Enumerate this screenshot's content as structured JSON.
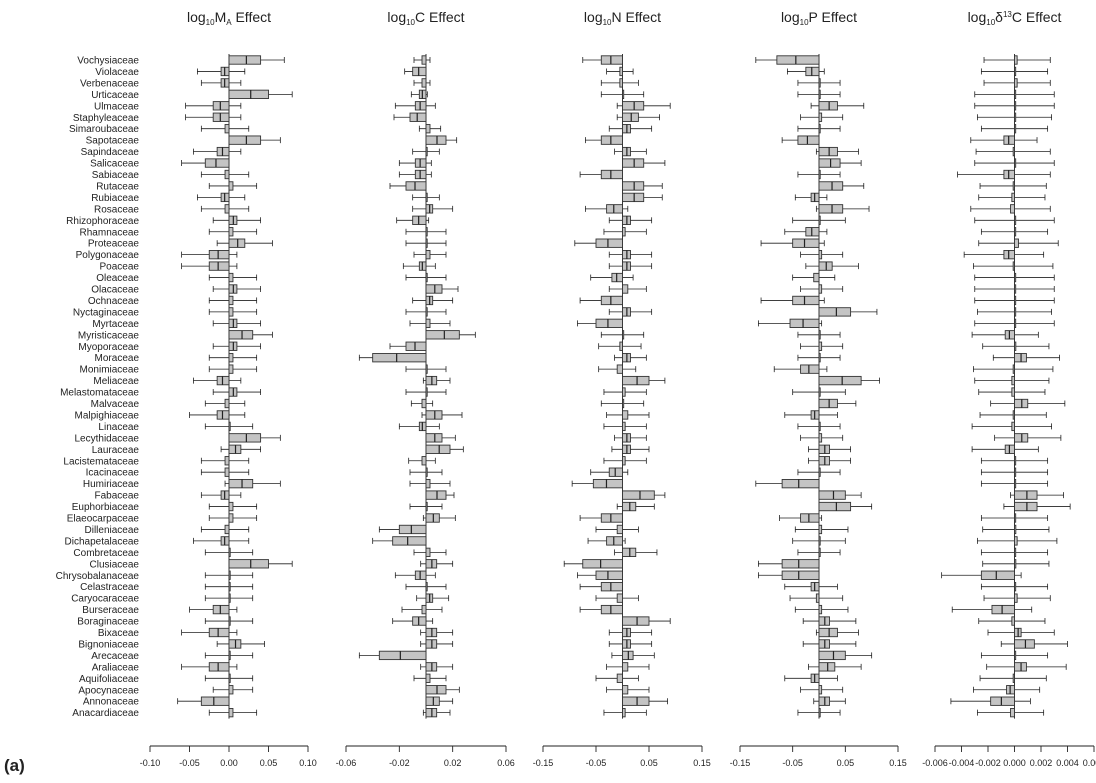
{
  "panel_label": "(a)",
  "chart_data": {
    "type": "bar",
    "orientation": "horizontal",
    "families": [
      "Vochysiaceae",
      "Violaceae",
      "Verbenaceae",
      "Urticaceae",
      "Ulmaceae",
      "Staphyleaceae",
      "Simaroubaceae",
      "Sapotaceae",
      "Sapindaceae",
      "Salicaceae",
      "Sabiaceae",
      "Rutaceae",
      "Rubiaceae",
      "Rosaceae",
      "Rhizophoraceae",
      "Rhamnaceae",
      "Proteaceae",
      "Polygonaceae",
      "Poaceae",
      "Oleaceae",
      "Olacaceae",
      "Ochnaceae",
      "Nyctaginaceae",
      "Myrtaceae",
      "Myristicaceae",
      "Myoporaceae",
      "Moraceae",
      "Monimiaceae",
      "Meliaceae",
      "Melastomataceae",
      "Malvaceae",
      "Malpighiaceae",
      "Linaceae",
      "Lecythidaceae",
      "Lauraceae",
      "Lacistemataceae",
      "Icacinaceae",
      "Humiriaceae",
      "Fabaceae",
      "Euphorbiaceae",
      "Elaeocarpaceae",
      "Dilleniaceae",
      "Dichapetalaceae",
      "Combretaceae",
      "Clusiaceae",
      "Chrysobalanaceae",
      "Celastraceae",
      "Caryocaraceae",
      "Burseraceae",
      "Boraginaceae",
      "Bixaceae",
      "Bignoniaceae",
      "Arecaceae",
      "Araliaceae",
      "Aquifoliaceae",
      "Apocynaceae",
      "Annonaceae",
      "Anacardiaceae"
    ],
    "panels": [
      {
        "title_main": "log",
        "title_sub": "10",
        "title_var": "M",
        "title_varsub": "A",
        "title_rest": " Effect",
        "xlim": [
          -0.1,
          0.1
        ],
        "ticks": [
          -0.1,
          -0.05,
          0.0,
          0.05,
          0.1
        ],
        "tick_labels": [
          "-0.10",
          "-0.05",
          "0.00",
          "0.05",
          "0.10"
        ],
        "values": [
          0.04,
          -0.01,
          -0.01,
          0.05,
          -0.02,
          -0.02,
          -0.005,
          0.04,
          -0.015,
          -0.03,
          -0.005,
          0.005,
          -0.01,
          -0.005,
          0.01,
          0.005,
          0.02,
          -0.025,
          -0.025,
          0.005,
          0.01,
          0.005,
          0.005,
          0.01,
          0.03,
          0.01,
          0.005,
          0.005,
          -0.015,
          0.01,
          -0.005,
          -0.015,
          0.0,
          0.04,
          0.015,
          -0.005,
          -0.005,
          0.03,
          -0.01,
          0.005,
          0.005,
          -0.005,
          -0.01,
          0.0,
          0.05,
          0.0,
          0.0,
          0.0,
          -0.02,
          0.0,
          -0.025,
          0.015,
          0.0,
          -0.025,
          0.0,
          0.005,
          -0.035,
          0.005
        ],
        "errors": [
          0.03,
          0.03,
          0.025,
          0.03,
          0.035,
          0.035,
          0.03,
          0.025,
          0.03,
          0.03,
          0.03,
          0.03,
          0.03,
          0.03,
          0.03,
          0.03,
          0.035,
          0.035,
          0.035,
          0.03,
          0.03,
          0.03,
          0.03,
          0.03,
          0.025,
          0.03,
          0.03,
          0.03,
          0.03,
          0.03,
          0.025,
          0.035,
          0.03,
          0.025,
          0.025,
          0.03,
          0.03,
          0.035,
          0.025,
          0.03,
          0.03,
          0.03,
          0.035,
          0.03,
          0.03,
          0.03,
          0.03,
          0.03,
          0.03,
          0.03,
          0.035,
          0.03,
          0.03,
          0.035,
          0.03,
          0.025,
          0.03,
          0.03
        ]
      },
      {
        "title_main": "log",
        "title_sub": "10",
        "title_var": "C",
        "title_varsub": "",
        "title_rest": " Effect",
        "xlim": [
          -0.06,
          0.06
        ],
        "ticks": [
          -0.06,
          -0.02,
          0.02,
          0.06
        ],
        "tick_labels": [
          "-0.06",
          "-0.02",
          "0.02",
          "0.06"
        ],
        "values": [
          -0.003,
          -0.01,
          -0.003,
          -0.005,
          -0.008,
          -0.012,
          0.003,
          0.015,
          0.0,
          -0.008,
          -0.008,
          -0.015,
          0.0,
          0.005,
          -0.01,
          0.0,
          0.0,
          0.003,
          -0.005,
          0.0,
          0.012,
          0.005,
          0.0,
          0.003,
          0.025,
          -0.015,
          -0.04,
          0.0,
          0.008,
          0.0,
          -0.003,
          0.012,
          -0.005,
          0.012,
          0.018,
          -0.003,
          0.0,
          0.003,
          0.015,
          0.0,
          0.01,
          -0.02,
          -0.025,
          0.003,
          0.008,
          -0.008,
          0.0,
          0.005,
          -0.003,
          -0.01,
          0.008,
          0.008,
          -0.035,
          0.008,
          0.003,
          0.015,
          0.01,
          0.008
        ],
        "errors": [
          0.006,
          0.006,
          0.006,
          0.006,
          0.015,
          0.012,
          0.008,
          0.008,
          0.01,
          0.012,
          0.012,
          0.012,
          0.01,
          0.015,
          0.012,
          0.015,
          0.015,
          0.012,
          0.012,
          0.015,
          0.012,
          0.015,
          0.015,
          0.015,
          0.012,
          0.012,
          0.01,
          0.015,
          0.01,
          0.015,
          0.008,
          0.015,
          0.015,
          0.01,
          0.01,
          0.01,
          0.012,
          0.015,
          0.006,
          0.012,
          0.012,
          0.015,
          0.015,
          0.012,
          0.012,
          0.015,
          0.015,
          0.012,
          0.015,
          0.015,
          0.012,
          0.012,
          0.015,
          0.012,
          0.012,
          0.01,
          0.01,
          0.01
        ]
      },
      {
        "title_main": "log",
        "title_sub": "10",
        "title_var": "N",
        "title_varsub": "",
        "title_rest": " Effect",
        "xlim": [
          -0.15,
          0.15
        ],
        "ticks": [
          -0.15,
          -0.05,
          0.05,
          0.15
        ],
        "tick_labels": [
          "-0.15",
          "-0.05",
          "0.05",
          "0.15"
        ],
        "values": [
          -0.04,
          -0.005,
          -0.005,
          0.0,
          0.04,
          0.03,
          0.015,
          -0.04,
          0.015,
          0.04,
          -0.04,
          0.04,
          0.04,
          -0.03,
          0.015,
          0.005,
          -0.05,
          0.015,
          0.015,
          -0.02,
          0.01,
          -0.04,
          0.015,
          -0.05,
          0.0,
          -0.005,
          0.015,
          -0.01,
          0.05,
          0.005,
          0.0,
          0.01,
          0.005,
          0.015,
          0.015,
          0.005,
          -0.025,
          -0.055,
          0.06,
          0.025,
          -0.04,
          -0.01,
          -0.03,
          0.025,
          -0.075,
          -0.05,
          -0.04,
          -0.01,
          -0.04,
          0.05,
          0.015,
          0.015,
          0.02,
          0.01,
          -0.01,
          0.01,
          0.05,
          0.005
        ],
        "errors": [
          0.035,
          0.025,
          0.035,
          0.04,
          0.05,
          0.04,
          0.04,
          0.03,
          0.03,
          0.04,
          0.04,
          0.035,
          0.035,
          0.04,
          0.04,
          0.04,
          0.04,
          0.04,
          0.04,
          0.04,
          0.035,
          0.04,
          0.04,
          0.035,
          0.04,
          0.04,
          0.03,
          0.035,
          0.03,
          0.04,
          0.04,
          0.04,
          0.04,
          0.03,
          0.035,
          0.04,
          0.035,
          0.04,
          0.02,
          0.035,
          0.04,
          0.04,
          0.035,
          0.04,
          0.035,
          0.035,
          0.04,
          0.04,
          0.04,
          0.04,
          0.04,
          0.04,
          0.04,
          0.04,
          0.04,
          0.04,
          0.035,
          0.04
        ]
      },
      {
        "title_main": "log",
        "title_sub": "10",
        "title_var": "P",
        "title_varsub": "",
        "title_rest": " Effect",
        "xlim": [
          -0.15,
          0.15
        ],
        "ticks": [
          -0.15,
          -0.05,
          0.05,
          0.15
        ],
        "tick_labels": [
          "-0.15",
          "-0.05",
          "0.05",
          "0.15"
        ],
        "values": [
          -0.08,
          -0.025,
          0.0,
          0.0,
          0.035,
          0.005,
          0.0,
          -0.04,
          0.035,
          0.04,
          0.0,
          0.045,
          -0.015,
          0.045,
          0.0,
          -0.025,
          -0.05,
          0.005,
          0.025,
          -0.01,
          0.005,
          -0.05,
          0.06,
          -0.055,
          0.0,
          0.005,
          0.0,
          -0.035,
          0.08,
          0.0,
          0.035,
          -0.015,
          0.0,
          0.005,
          0.02,
          0.02,
          0.0,
          -0.07,
          0.05,
          0.06,
          -0.035,
          0.005,
          0.0,
          0.0,
          -0.07,
          -0.07,
          -0.015,
          -0.005,
          0.005,
          0.02,
          0.035,
          0.02,
          0.05,
          0.03,
          -0.015,
          0.005,
          0.02,
          0.0
        ],
        "errors": [
          0.04,
          0.035,
          0.04,
          0.04,
          0.05,
          0.04,
          0.04,
          0.03,
          0.04,
          0.04,
          0.04,
          0.04,
          0.03,
          0.05,
          0.05,
          0.04,
          0.06,
          0.04,
          0.05,
          0.04,
          0.04,
          0.06,
          0.05,
          0.06,
          0.04,
          0.04,
          0.04,
          0.05,
          0.035,
          0.05,
          0.035,
          0.05,
          0.04,
          0.04,
          0.04,
          0.04,
          0.04,
          0.05,
          0.03,
          0.04,
          0.04,
          0.05,
          0.05,
          0.04,
          0.045,
          0.045,
          0.05,
          0.05,
          0.05,
          0.05,
          0.04,
          0.05,
          0.05,
          0.05,
          0.05,
          0.04,
          0.03,
          0.04
        ]
      },
      {
        "title_main": "log",
        "title_sub": "10",
        "title_var": "δ",
        "title_varsup": "13",
        "title_varafter": "C",
        "title_varsub": "",
        "title_rest": " Effect",
        "xlim": [
          -0.006,
          0.006
        ],
        "ticks": [
          -0.006,
          -0.004,
          -0.002,
          0.0,
          0.002,
          0.004,
          0.006
        ],
        "tick_labels": [
          "-0.006",
          "-0.004",
          "-0.002",
          "0.000",
          "0.002",
          "0.004",
          "0.006"
        ],
        "values": [
          0.0002,
          0.0,
          0.0002,
          0.0,
          0.0,
          0.0,
          0.0,
          -0.0008,
          -0.0001,
          0.0,
          -0.0008,
          -0.0001,
          -0.0002,
          -0.0003,
          0.0,
          0.0,
          0.0003,
          -0.0008,
          -0.0001,
          0.0,
          0.0,
          0.0,
          0.0,
          0.0,
          -0.0007,
          0.0001,
          0.0009,
          -0.0001,
          -0.0002,
          -0.0002,
          0.001,
          -0.0001,
          -0.0002,
          0.001,
          -0.0007,
          0.0,
          0.0,
          0.0,
          0.0017,
          0.0017,
          0.0,
          0.0001,
          0.0002,
          0.0,
          0.0001,
          -0.0025,
          0.0,
          0.0002,
          -0.0017,
          -0.0002,
          0.0005,
          0.0015,
          0.0,
          0.0009,
          -0.0001,
          -0.0006,
          -0.0018,
          -0.0003
        ],
        "errors": [
          0.0025,
          0.0025,
          0.0025,
          0.003,
          0.003,
          0.0028,
          0.0025,
          0.0025,
          0.0028,
          0.003,
          0.0035,
          0.0025,
          0.0025,
          0.003,
          0.003,
          0.0025,
          0.003,
          0.003,
          0.003,
          0.003,
          0.003,
          0.003,
          0.0028,
          0.003,
          0.0025,
          0.0025,
          0.0025,
          0.003,
          0.0028,
          0.0025,
          0.0028,
          0.0025,
          0.003,
          0.0025,
          0.0025,
          0.0025,
          0.0025,
          0.0025,
          0.002,
          0.0025,
          0.0025,
          0.0025,
          0.003,
          0.0025,
          0.0025,
          0.003,
          0.0025,
          0.0025,
          0.003,
          0.0025,
          0.0025,
          0.0025,
          0.0025,
          0.003,
          0.0025,
          0.0025,
          0.003,
          0.0025
        ]
      }
    ]
  }
}
